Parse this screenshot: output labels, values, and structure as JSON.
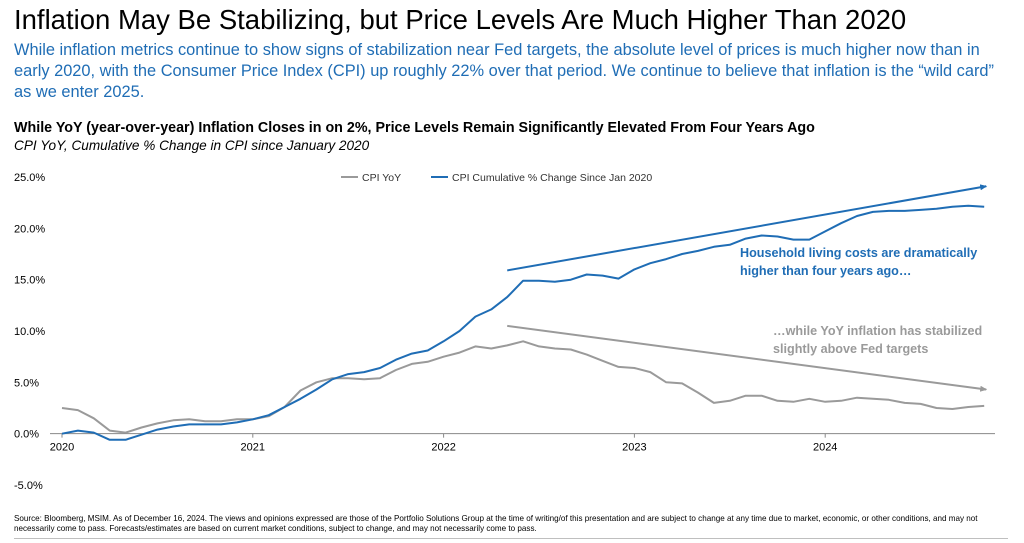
{
  "headline": "Inflation May Be Stabilizing, but Price Levels Are Much Higher Than 2020",
  "subheadline": "While inflation metrics continue to show signs of stabilization near Fed targets, the absolute level of prices is much higher now than in early 2020, with the Consumer Price Index (CPI) up roughly 22% over that period. We continue to believe that inflation is the “wild card” as we enter 2025.",
  "source_note": "Source: Bloomberg, MSIM. As of December 16, 2024. The views and opinions expressed are those of the Portfolio Solutions Group at the time of writing/of this presentation and are subject to change at any time due to market, economic, or other conditions, and may not necessarily come to pass. Forecasts/estimates are based on current market conditions, subject to change, and may not necessarily come to pass.",
  "colors": {
    "cpi_yoy": "#9a9a9a",
    "cpi_cumulative": "#1f6db5",
    "headline_text": "#000000",
    "subheadline_text": "#1f6db5"
  },
  "chart_data": {
    "type": "line",
    "title": "While YoY (year-over-year) Inflation Closes in on 2%, Price Levels Remain Significantly Elevated From Four Years Ago",
    "subtitle": "CPI YoY, Cumulative % Change in CPI since January 2020",
    "xlabel": "",
    "ylabel": "",
    "ylim": [
      -5,
      25
    ],
    "y_ticks": [
      -5,
      0,
      5,
      10,
      15,
      20,
      25
    ],
    "y_tick_labels": [
      "-5.0%",
      "0.0%",
      "5.0%",
      "10.0%",
      "15.0%",
      "20.0%",
      "25.0%"
    ],
    "x_range": [
      "2020-01",
      "2024-11"
    ],
    "x_ticks": [
      "2020-01",
      "2021-01",
      "2022-01",
      "2023-01",
      "2024-01"
    ],
    "x_tick_labels": [
      "2020",
      "2021",
      "2022",
      "2023",
      "2024"
    ],
    "grid": false,
    "legend": {
      "placement": "top-center",
      "entries": [
        "CPI YoY",
        "CPI Cumulative % Change Since Jan 2020"
      ]
    },
    "x": [
      "2020-01",
      "2020-02",
      "2020-03",
      "2020-04",
      "2020-05",
      "2020-06",
      "2020-07",
      "2020-08",
      "2020-09",
      "2020-10",
      "2020-11",
      "2020-12",
      "2021-01",
      "2021-02",
      "2021-03",
      "2021-04",
      "2021-05",
      "2021-06",
      "2021-07",
      "2021-08",
      "2021-09",
      "2021-10",
      "2021-11",
      "2021-12",
      "2022-01",
      "2022-02",
      "2022-03",
      "2022-04",
      "2022-05",
      "2022-06",
      "2022-07",
      "2022-08",
      "2022-09",
      "2022-10",
      "2022-11",
      "2022-12",
      "2023-01",
      "2023-02",
      "2023-03",
      "2023-04",
      "2023-05",
      "2023-06",
      "2023-07",
      "2023-08",
      "2023-09",
      "2023-10",
      "2023-11",
      "2023-12",
      "2024-01",
      "2024-02",
      "2024-03",
      "2024-04",
      "2024-05",
      "2024-06",
      "2024-07",
      "2024-08",
      "2024-09",
      "2024-10",
      "2024-11"
    ],
    "series": [
      {
        "name": "CPI YoY",
        "color": "#9a9a9a",
        "values": [
          2.5,
          2.3,
          1.5,
          0.3,
          0.1,
          0.6,
          1.0,
          1.3,
          1.4,
          1.2,
          1.2,
          1.4,
          1.4,
          1.7,
          2.6,
          4.2,
          5.0,
          5.4,
          5.4,
          5.3,
          5.4,
          6.2,
          6.8,
          7.0,
          7.5,
          7.9,
          8.5,
          8.3,
          8.6,
          9.0,
          8.5,
          8.3,
          8.2,
          7.7,
          7.1,
          6.5,
          6.4,
          6.0,
          5.0,
          4.9,
          4.0,
          3.0,
          3.2,
          3.7,
          3.7,
          3.2,
          3.1,
          3.4,
          3.1,
          3.2,
          3.5,
          3.4,
          3.3,
          3.0,
          2.9,
          2.5,
          2.4,
          2.6,
          2.7
        ]
      },
      {
        "name": "CPI Cumulative % Change Since Jan 2020",
        "color": "#1f6db5",
        "values": [
          0.0,
          0.3,
          0.1,
          -0.6,
          -0.6,
          -0.1,
          0.4,
          0.7,
          0.9,
          0.9,
          0.9,
          1.1,
          1.4,
          1.8,
          2.6,
          3.4,
          4.3,
          5.3,
          5.8,
          6.0,
          6.4,
          7.2,
          7.8,
          8.1,
          9.0,
          10.0,
          11.4,
          12.1,
          13.3,
          14.9,
          14.9,
          14.8,
          15.0,
          15.5,
          15.4,
          15.1,
          16.0,
          16.6,
          17.0,
          17.5,
          17.8,
          18.2,
          18.4,
          19.0,
          19.3,
          19.2,
          18.9,
          18.9,
          19.7,
          20.5,
          21.2,
          21.6,
          21.7,
          21.7,
          21.8,
          21.9,
          22.1,
          22.2,
          22.1
        ]
      }
    ],
    "annotations": {
      "blue_text": [
        "Household living costs are dramatically",
        "higher than four years ago…"
      ],
      "gray_text": [
        "…while YoY inflation has stabilized",
        "slightly above Fed targets"
      ],
      "blue_arrow": {
        "from": [
          "2022-05",
          15.9
        ],
        "to": [
          "2024-11",
          24.1
        ]
      },
      "gray_arrow": {
        "from": [
          "2022-05",
          10.5
        ],
        "to": [
          "2024-11",
          4.3
        ]
      }
    }
  }
}
